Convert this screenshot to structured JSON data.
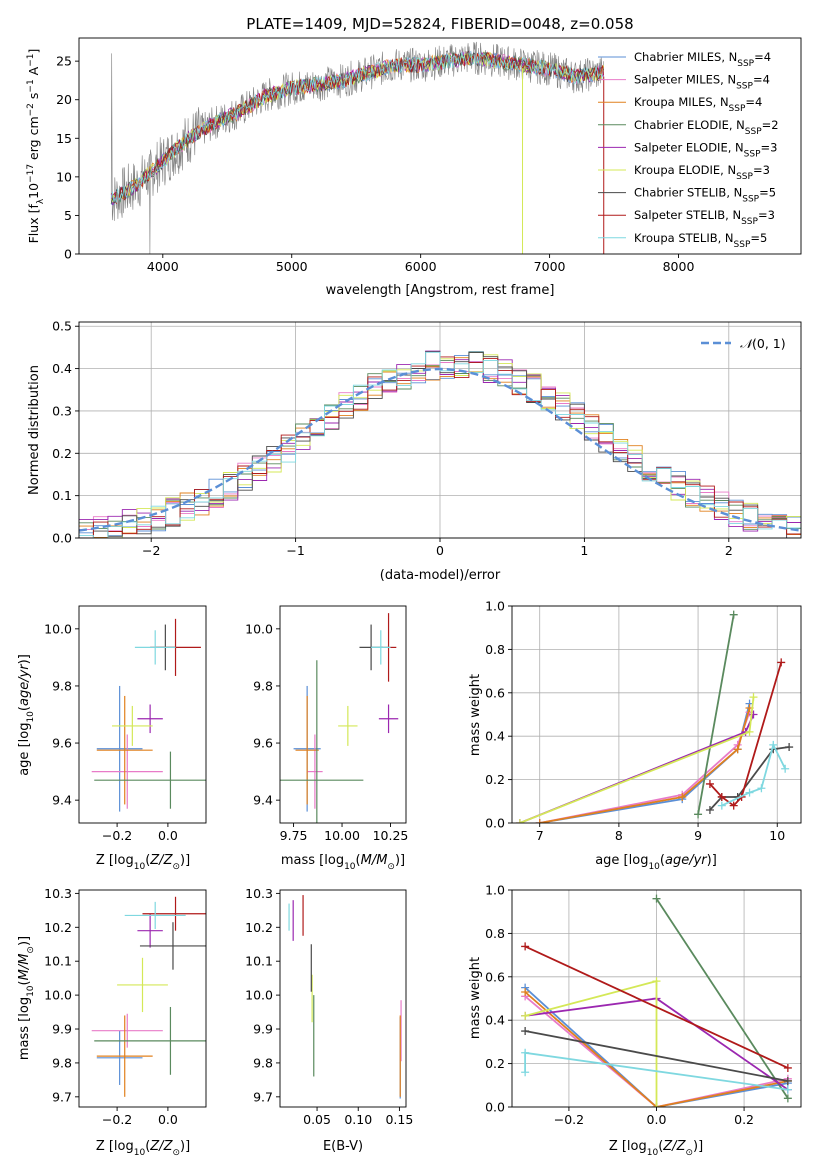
{
  "figure_title": "PLATE=1409, MJD=52824, FIBERID=0048, z=0.058",
  "colors": {
    "Chabrier MILES": "#5b8fd6",
    "Salpeter MILES": "#e87bc8",
    "Kroupa MILES": "#e0801e",
    "Chabrier ELODIE": "#5a8a5e",
    "Salpeter ELODIE": "#9b27b0",
    "Kroupa ELODIE": "#d4e857",
    "Chabrier STELIB": "#4a4a4a",
    "Salpeter STELIB": "#b01a1a",
    "Kroupa STELIB": "#7fd8e0",
    "data": "#808080",
    "normal": "#5b8fd6"
  },
  "chart_data": [
    {
      "id": "spectrum",
      "type": "line",
      "title": "PLATE=1409, MJD=52824, FIBERID=0048, z=0.058",
      "xlabel": "wavelength [Angstrom, rest frame]",
      "ylabel": "Flux [f",
      "xlim": [
        3350,
        8950
      ],
      "ylim": [
        0,
        28
      ],
      "xticks": [
        4000,
        5000,
        6000,
        7000,
        8000
      ],
      "yticks": [
        0,
        5,
        10,
        15,
        20,
        25
      ],
      "grid": false,
      "legend_position": "right",
      "legend": [
        {
          "name": "Chabrier MILES",
          "nssp": "4"
        },
        {
          "name": "Salpeter MILES",
          "nssp": "4"
        },
        {
          "name": "Kroupa MILES",
          "nssp": "4"
        },
        {
          "name": "Chabrier ELODIE",
          "nssp": "2"
        },
        {
          "name": "Salpeter ELODIE",
          "nssp": "3"
        },
        {
          "name": "Kroupa ELODIE",
          "nssp": "3"
        },
        {
          "name": "Chabrier STELIB",
          "nssp": "5"
        },
        {
          "name": "Salpeter STELIB",
          "nssp": "3"
        },
        {
          "name": "Kroupa STELIB",
          "nssp": "5"
        }
      ],
      "continuum": {
        "x": [
          3600,
          3800,
          4000,
          4200,
          4400,
          4600,
          4800,
          5000,
          5200,
          5400,
          5600,
          5800,
          6000,
          6200,
          6400,
          6600,
          6800,
          7000,
          7200,
          7400
        ],
        "y": [
          7,
          9,
          12,
          15,
          17,
          18.5,
          20.5,
          21.5,
          22,
          22.5,
          23.5,
          24.5,
          24.5,
          25,
          25.5,
          25,
          24.5,
          24,
          23,
          23.5
        ]
      }
    },
    {
      "id": "residuals",
      "type": "histogram",
      "xlabel": "(data-model)/error",
      "ylabel": "Normed distribution",
      "xlim": [
        -2.5,
        2.5
      ],
      "ylim": [
        0,
        0.51
      ],
      "xticks": [
        -2,
        -1,
        0,
        1,
        2
      ],
      "yticks": [
        0.0,
        0.1,
        0.2,
        0.3,
        0.4,
        0.5
      ],
      "grid": true,
      "legend_position": "top-right",
      "legend": "N(0,1)",
      "bin_width": 0.1
    },
    {
      "id": "age_Z",
      "type": "errorbar",
      "xlabel": "Z [log",
      "ylabel": "age  [log",
      "xlim": [
        -0.35,
        0.15
      ],
      "ylim": [
        9.32,
        10.08
      ],
      "xticks": [
        -0.2,
        0.0
      ],
      "yticks": [
        9.4,
        9.6,
        9.8,
        10.0
      ],
      "grid": false,
      "points": [
        {
          "model": "Chabrier MILES",
          "x": -0.19,
          "xerr": 0.09,
          "y": 9.58,
          "yerr": 0.22
        },
        {
          "model": "Salpeter MILES",
          "x": -0.16,
          "xerr": 0.14,
          "y": 9.5,
          "yerr": 0.13
        },
        {
          "model": "Kroupa MILES",
          "x": -0.17,
          "xerr": 0.11,
          "y": 9.575,
          "yerr": 0.19
        },
        {
          "model": "Chabrier ELODIE",
          "x": 0.01,
          "xerr": 0.3,
          "y": 9.47,
          "yerr": 0.1
        },
        {
          "model": "Salpeter ELODIE",
          "x": -0.07,
          "xerr": 0.05,
          "y": 9.685,
          "yerr": 0.05
        },
        {
          "model": "Kroupa ELODIE",
          "x": -0.14,
          "xerr": 0.08,
          "y": 9.66,
          "yerr": 0.07
        },
        {
          "model": "Chabrier STELIB",
          "x": -0.01,
          "xerr": 0.04,
          "y": 9.935,
          "yerr": 0.08
        },
        {
          "model": "Salpeter STELIB",
          "x": 0.03,
          "xerr": 0.1,
          "y": 9.935,
          "yerr": 0.1
        },
        {
          "model": "Kroupa STELIB",
          "x": -0.05,
          "xerr": 0.08,
          "y": 9.935,
          "yerr": 0.06
        }
      ]
    },
    {
      "id": "age_mass",
      "type": "errorbar",
      "xlabel": "mass [log",
      "xlim": [
        9.68,
        10.33
      ],
      "ylim": [
        9.32,
        10.08
      ],
      "xticks": [
        9.75,
        10.0,
        10.25
      ],
      "yticks": [
        9.4,
        9.6,
        9.8,
        10.0
      ],
      "grid": false,
      "points": [
        {
          "model": "Chabrier MILES",
          "x": 9.82,
          "xerr": 0.07,
          "y": 9.58,
          "yerr": 0.22
        },
        {
          "model": "Salpeter MILES",
          "x": 9.86,
          "xerr": 0.04,
          "y": 9.5,
          "yerr": 0.13
        },
        {
          "model": "Kroupa MILES",
          "x": 9.82,
          "xerr": 0.06,
          "y": 9.575,
          "yerr": 0.19
        },
        {
          "model": "Chabrier ELODIE",
          "x": 9.87,
          "xerr": 0.24,
          "y": 9.47,
          "yerr": 0.42
        },
        {
          "model": "Salpeter ELODIE",
          "x": 10.24,
          "xerr": 0.05,
          "y": 9.685,
          "yerr": 0.05
        },
        {
          "model": "Kroupa ELODIE",
          "x": 10.03,
          "xerr": 0.05,
          "y": 9.66,
          "yerr": 0.07
        },
        {
          "model": "Chabrier STELIB",
          "x": 10.15,
          "xerr": 0.06,
          "y": 9.935,
          "yerr": 0.08
        },
        {
          "model": "Salpeter STELIB",
          "x": 10.24,
          "xerr": 0.04,
          "y": 9.935,
          "yerr": 0.12
        },
        {
          "model": "Kroupa STELIB",
          "x": 10.2,
          "xerr": 0.05,
          "y": 9.935,
          "yerr": 0.06
        }
      ]
    },
    {
      "id": "weight_age",
      "type": "line",
      "xlabel": "age  [log",
      "ylabel": "mass weight",
      "xlim": [
        6.65,
        10.3
      ],
      "ylim": [
        0,
        1.0
      ],
      "xticks": [
        7,
        8,
        9,
        10
      ],
      "yticks": [
        0.0,
        0.2,
        0.4,
        0.6,
        0.8,
        1.0
      ],
      "grid": true,
      "series": [
        {
          "model": "Chabrier MILES",
          "x": [
            7.0,
            8.8,
            9.5,
            9.65
          ],
          "y": [
            0.0,
            0.11,
            0.34,
            0.55
          ]
        },
        {
          "model": "Salpeter MILES",
          "x": [
            7.0,
            8.8,
            9.5,
            9.65
          ],
          "y": [
            0.0,
            0.13,
            0.36,
            0.51
          ]
        },
        {
          "model": "Kroupa MILES",
          "x": [
            7.0,
            8.8,
            9.5,
            9.65
          ],
          "y": [
            0.0,
            0.12,
            0.34,
            0.53
          ]
        },
        {
          "model": "Chabrier ELODIE",
          "x": [
            9.0,
            9.45
          ],
          "y": [
            0.04,
            0.96
          ]
        },
        {
          "model": "Salpeter ELODIE",
          "x": [
            6.75,
            9.6,
            9.7
          ],
          "y": [
            0.0,
            0.42,
            0.5
          ]
        },
        {
          "model": "Kroupa ELODIE",
          "x": [
            6.75,
            9.65,
            9.7
          ],
          "y": [
            0.0,
            0.42,
            0.58
          ]
        },
        {
          "model": "Chabrier STELIB",
          "x": [
            9.15,
            9.3,
            9.5,
            9.95,
            10.15
          ],
          "y": [
            0.06,
            0.12,
            0.12,
            0.34,
            0.35
          ]
        },
        {
          "model": "Salpeter STELIB",
          "x": [
            9.15,
            9.3,
            9.45,
            9.55,
            10.05
          ],
          "y": [
            0.18,
            0.12,
            0.08,
            0.12,
            0.74
          ]
        },
        {
          "model": "Kroupa STELIB",
          "x": [
            9.3,
            9.65,
            9.8,
            9.95,
            10.1
          ],
          "y": [
            0.08,
            0.14,
            0.16,
            0.36,
            0.25
          ]
        }
      ]
    },
    {
      "id": "mass_Z",
      "type": "errorbar",
      "xlabel": "Z [log",
      "ylabel": "mass [log",
      "xlim": [
        -0.35,
        0.15
      ],
      "ylim": [
        9.67,
        10.31
      ],
      "xticks": [
        -0.2,
        0.0
      ],
      "yticks": [
        9.7,
        9.8,
        9.9,
        10.0,
        10.1,
        10.2,
        10.3
      ],
      "grid": false,
      "points": [
        {
          "model": "Chabrier MILES",
          "x": -0.19,
          "xerr": 0.09,
          "y": 9.815,
          "yerr": 0.08
        },
        {
          "model": "Salpeter MILES",
          "x": -0.16,
          "xerr": 0.14,
          "y": 9.895,
          "yerr": 0.05
        },
        {
          "model": "Kroupa MILES",
          "x": -0.17,
          "xerr": 0.11,
          "y": 9.82,
          "yerr": 0.12
        },
        {
          "model": "Chabrier ELODIE",
          "x": 0.01,
          "xerr": 0.3,
          "y": 9.865,
          "yerr": 0.1
        },
        {
          "model": "Salpeter ELODIE",
          "x": -0.07,
          "xerr": 0.05,
          "y": 10.19,
          "yerr": 0.05
        },
        {
          "model": "Kroupa ELODIE",
          "x": -0.1,
          "xerr": 0.1,
          "y": 10.03,
          "yerr": 0.08
        },
        {
          "model": "Chabrier STELIB",
          "x": 0.02,
          "xerr": 0.13,
          "y": 10.145,
          "yerr": 0.07
        },
        {
          "model": "Salpeter STELIB",
          "x": 0.03,
          "xerr": 0.13,
          "y": 10.24,
          "yerr": 0.05
        },
        {
          "model": "Kroupa STELIB",
          "x": -0.05,
          "xerr": 0.12,
          "y": 10.235,
          "yerr": 0.04
        }
      ]
    },
    {
      "id": "mass_EBV",
      "type": "errorbar",
      "xlabel": "E(B-V)",
      "xlim": [
        0.005,
        0.158
      ],
      "ylim": [
        9.67,
        10.31
      ],
      "xticks": [
        0.05,
        0.1,
        0.15
      ],
      "yticks": [
        9.7,
        9.8,
        9.9,
        10.0,
        10.1,
        10.2,
        10.3
      ],
      "grid": false,
      "points": [
        {
          "model": "Chabrier MILES",
          "x": 0.151,
          "xerr": 0,
          "y": 9.815,
          "yerr": 0.12
        },
        {
          "model": "Salpeter MILES",
          "x": 0.152,
          "xerr": 0,
          "y": 9.895,
          "yerr": 0.09
        },
        {
          "model": "Kroupa MILES",
          "x": 0.151,
          "xerr": 0,
          "y": 9.82,
          "yerr": 0.12
        },
        {
          "model": "Chabrier ELODIE",
          "x": 0.046,
          "xerr": 0,
          "y": 9.88,
          "yerr": 0.12
        },
        {
          "model": "Salpeter ELODIE",
          "x": 0.021,
          "xerr": 0,
          "y": 10.22,
          "yerr": 0.06
        },
        {
          "model": "Kroupa ELODIE",
          "x": 0.044,
          "xerr": 0,
          "y": 9.99,
          "yerr": 0.07
        },
        {
          "model": "Chabrier STELIB",
          "x": 0.043,
          "xerr": 0,
          "y": 10.08,
          "yerr": 0.07
        },
        {
          "model": "Salpeter STELIB",
          "x": 0.033,
          "xerr": 0,
          "y": 10.235,
          "yerr": 0.06
        },
        {
          "model": "Kroupa STELIB",
          "x": 0.016,
          "xerr": 0,
          "y": 10.23,
          "yerr": 0.04
        }
      ]
    },
    {
      "id": "weight_Z",
      "type": "line",
      "xlabel": "Z [log",
      "ylabel": "mass weight",
      "xlim": [
        -0.33,
        0.33
      ],
      "ylim": [
        0,
        1.0
      ],
      "xticks": [
        -0.2,
        0.0,
        0.2
      ],
      "yticks": [
        0.0,
        0.2,
        0.4,
        0.6,
        0.8,
        1.0
      ],
      "grid": true,
      "series": [
        {
          "model": "Chabrier MILES",
          "x": [
            -0.3,
            0.0,
            0.3
          ],
          "y": [
            0.55,
            0.0,
            0.11
          ]
        },
        {
          "model": "Salpeter MILES",
          "x": [
            -0.3,
            0.0,
            0.3
          ],
          "y": [
            0.51,
            0.0,
            0.13
          ]
        },
        {
          "model": "Kroupa MILES",
          "x": [
            -0.3,
            0.0,
            0.3
          ],
          "y": [
            0.53,
            0.0,
            0.12
          ]
        },
        {
          "model": "Chabrier ELODIE",
          "x": [
            0.0,
            0.3
          ],
          "y": [
            0.96,
            0.04
          ]
        },
        {
          "model": "Salpeter ELODIE",
          "x": [
            -0.3,
            0.0,
            0.3
          ],
          "y": [
            0.42,
            0.5,
            0.08
          ]
        },
        {
          "model": "Kroupa ELODIE",
          "x": [
            -0.3,
            0.0,
            0.0
          ],
          "y": [
            0.42,
            0.58,
            0.0
          ]
        },
        {
          "model": "Chabrier STELIB",
          "x": [
            -0.3,
            0.3
          ],
          "y": [
            0.35,
            0.12
          ]
        },
        {
          "model": "Salpeter STELIB",
          "x": [
            -0.3,
            0.3
          ],
          "y": [
            0.74,
            0.18
          ]
        },
        {
          "model": "Kroupa STELIB",
          "x": [
            -0.3,
            -0.3,
            0.3
          ],
          "y": [
            0.16,
            0.25,
            0.08
          ]
        }
      ]
    }
  ]
}
